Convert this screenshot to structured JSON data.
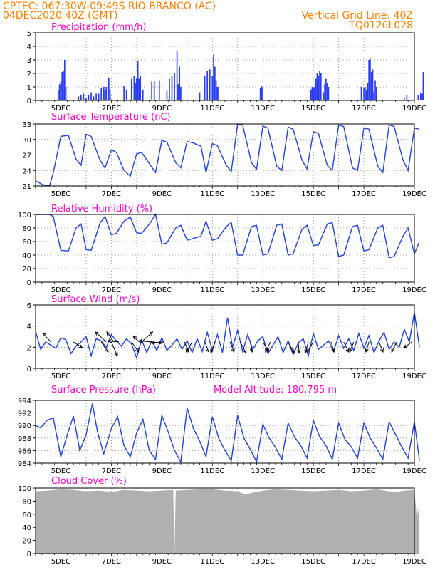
{
  "header": {
    "line1": "CPTEC:   067:30W-09:49S  RIO BRANCO (AC)",
    "line2": "04DEC2020 40Z (GMT)",
    "right1": "Vertical Grid Line: 40Z",
    "right2": "TQ0126L028",
    "model_altitude": "Model Altitude: 180.795 m"
  },
  "colors": {
    "header": "#ff7f00",
    "title": "#ff00c8",
    "line": "#2040e0",
    "bar": "#2a3cf0",
    "cloud": "#b0b0b0",
    "arrow": "#000000"
  },
  "x_axis": {
    "start_day": 4.0,
    "end_day": 19.0,
    "tick_labels": [
      "5DEC",
      "7DEC",
      "9DEC",
      "11DEC",
      "13DEC",
      "15DEC",
      "17DEC",
      "19DEC"
    ]
  },
  "chart_data": [
    {
      "type": "bar",
      "title": "Precipitation (mm/h)",
      "ylim": [
        0,
        5
      ],
      "yticks": [
        "0",
        "1",
        "2",
        "3",
        "4",
        "5"
      ],
      "x": [
        4.9,
        4.95,
        5.0,
        5.05,
        5.1,
        5.15,
        5.2,
        5.7,
        5.8,
        5.9,
        6.0,
        6.1,
        6.2,
        6.3,
        6.4,
        6.5,
        6.6,
        6.7,
        6.75,
        6.8,
        6.9,
        6.95,
        7.5,
        7.6,
        7.8,
        7.9,
        7.95,
        8.0,
        8.05,
        8.1,
        8.15,
        8.25,
        8.6,
        8.7,
        8.9,
        9.2,
        9.3,
        9.4,
        9.5,
        9.6,
        9.65,
        9.7,
        9.75,
        10.5,
        10.7,
        10.8,
        10.9,
        11.0,
        11.05,
        11.1,
        11.15,
        11.2,
        11.25,
        12.9,
        12.95,
        13.0,
        14.9,
        14.95,
        15.0,
        15.05,
        15.1,
        15.15,
        15.2,
        15.25,
        15.3,
        15.4,
        15.45,
        15.5,
        15.55,
        15.6,
        16.9,
        17.0,
        17.05,
        17.1,
        17.15,
        17.2,
        17.25,
        17.3,
        17.35,
        17.4,
        17.45,
        17.5,
        18.6,
        18.7,
        19.15,
        19.25,
        19.3,
        19.35
      ],
      "values": [
        0.8,
        1.2,
        1.4,
        2.1,
        2.2,
        3.0,
        1.0,
        0.3,
        0.4,
        0.5,
        0.2,
        0.4,
        0.6,
        0.3,
        0.5,
        0.5,
        0.9,
        1.0,
        0.8,
        1.0,
        1.7,
        0.8,
        1.1,
        0.8,
        1.6,
        1.8,
        1.3,
        1.6,
        2.9,
        1.6,
        1.8,
        0.8,
        1.4,
        1.4,
        1.5,
        0.7,
        1.6,
        1.8,
        2.0,
        3.7,
        1.2,
        2.5,
        1.0,
        0.6,
        1.8,
        2.2,
        2.3,
        1.8,
        3.4,
        2.5,
        1.5,
        1.0,
        1.0,
        0.9,
        1.1,
        0.9,
        0.8,
        1.0,
        0.9,
        1.0,
        1.6,
        2.0,
        1.8,
        2.2,
        2.0,
        0.6,
        1.2,
        1.6,
        1.3,
        1.0,
        1.0,
        0.9,
        1.0,
        0.8,
        1.3,
        3.0,
        3.1,
        2.1,
        2.3,
        0.6,
        1.5,
        1.0,
        0.2,
        0.4,
        0.4,
        0.6,
        0.5,
        2.1
      ]
    },
    {
      "type": "line",
      "title": "Surface Temperature (nC)",
      "ylim": [
        21,
        33
      ],
      "yticks": [
        "21",
        "24",
        "27",
        "30",
        "33"
      ],
      "x": [
        4.0,
        4.3,
        4.55,
        4.7,
        5.0,
        5.3,
        5.6,
        5.8,
        6.0,
        6.2,
        6.55,
        6.75,
        7.0,
        7.2,
        7.5,
        7.75,
        8.0,
        8.2,
        8.55,
        8.75,
        9.0,
        9.2,
        9.55,
        9.75,
        10.0,
        10.2,
        10.55,
        10.75,
        11.0,
        11.2,
        11.55,
        11.75,
        12.0,
        12.2,
        12.55,
        12.75,
        13.0,
        13.2,
        13.55,
        13.75,
        14.0,
        14.2,
        14.55,
        14.75,
        15.0,
        15.2,
        15.55,
        15.75,
        16.0,
        16.2,
        16.55,
        16.75,
        17.0,
        17.2,
        17.55,
        17.75,
        18.0,
        18.2,
        18.55,
        18.75,
        19.0,
        19.2
      ],
      "values": [
        22.0,
        21.2,
        21.0,
        23.5,
        30.6,
        30.8,
        26.2,
        25.0,
        31.0,
        30.6,
        26.0,
        24.5,
        28.0,
        27.5,
        24.0,
        22.9,
        27.2,
        27.5,
        25.0,
        23.6,
        29.8,
        29.5,
        25.5,
        24.5,
        29.6,
        29.4,
        28.7,
        23.6,
        29.2,
        28.8,
        25.0,
        23.8,
        33.0,
        32.8,
        25.5,
        24.2,
        32.6,
        32.2,
        24.8,
        24.0,
        32.4,
        32.0,
        26.0,
        24.3,
        31.5,
        31.2,
        25.0,
        24.0,
        32.8,
        32.5,
        24.5,
        24.0,
        32.2,
        32.0,
        24.8,
        23.6,
        32.8,
        32.5,
        26.0,
        24.0,
        32.2,
        32.0
      ]
    },
    {
      "type": "line",
      "title": "Relative Humidity (%)",
      "ylim": [
        0,
        100
      ],
      "yticks": [
        "0",
        "20",
        "40",
        "60",
        "80",
        "100"
      ],
      "x": [
        4.0,
        4.3,
        4.55,
        4.7,
        5.0,
        5.3,
        5.6,
        5.8,
        6.0,
        6.2,
        6.55,
        6.75,
        7.0,
        7.2,
        7.5,
        7.75,
        8.0,
        8.2,
        8.55,
        8.75,
        9.0,
        9.2,
        9.55,
        9.75,
        10.0,
        10.2,
        10.55,
        10.75,
        11.0,
        11.2,
        11.55,
        11.75,
        12.0,
        12.2,
        12.55,
        12.75,
        13.0,
        13.2,
        13.55,
        13.75,
        14.0,
        14.2,
        14.55,
        14.75,
        15.0,
        15.2,
        15.55,
        15.75,
        16.0,
        16.2,
        16.55,
        16.75,
        17.0,
        17.2,
        17.55,
        17.75,
        18.0,
        18.2,
        18.55,
        18.75,
        19.0,
        19.2
      ],
      "values": [
        100,
        100,
        100,
        97,
        47,
        46,
        80,
        86,
        48,
        47,
        87,
        97,
        70,
        72,
        90,
        96,
        73,
        72,
        88,
        100,
        56,
        58,
        80,
        84,
        62,
        64,
        68,
        90,
        62,
        64,
        82,
        88,
        40,
        40,
        82,
        84,
        40,
        42,
        84,
        86,
        40,
        42,
        78,
        84,
        54,
        55,
        86,
        88,
        38,
        40,
        82,
        84,
        46,
        48,
        80,
        84,
        36,
        38,
        68,
        80,
        42,
        60
      ]
    },
    {
      "type": "line",
      "title": "Surface Wind (m/s)",
      "ylim": [
        0,
        6
      ],
      "yticks": [
        "0",
        "2",
        "4",
        "6"
      ],
      "x": [
        4.0,
        4.2,
        4.4,
        4.6,
        4.8,
        5.0,
        5.2,
        5.4,
        5.6,
        5.8,
        6.0,
        6.2,
        6.4,
        6.6,
        6.8,
        7.0,
        7.2,
        7.4,
        7.6,
        7.8,
        8.0,
        8.2,
        8.4,
        8.6,
        8.8,
        9.0,
        9.2,
        9.4,
        9.6,
        9.8,
        10.0,
        10.2,
        10.4,
        10.6,
        10.8,
        11.0,
        11.2,
        11.4,
        11.6,
        11.8,
        12.0,
        12.2,
        12.4,
        12.6,
        12.8,
        13.0,
        13.2,
        13.4,
        13.6,
        13.8,
        14.0,
        14.2,
        14.4,
        14.6,
        14.8,
        15.0,
        15.2,
        15.4,
        15.6,
        15.8,
        16.0,
        16.2,
        16.4,
        16.6,
        16.8,
        17.0,
        17.2,
        17.4,
        17.6,
        17.8,
        18.0,
        18.2,
        18.4,
        18.6,
        18.8,
        19.0,
        19.2
      ],
      "values": [
        3.5,
        1.8,
        2.5,
        2.2,
        1.9,
        2.9,
        2.7,
        1.4,
        2.1,
        2.5,
        3.0,
        1.2,
        2.8,
        2.6,
        2.0,
        3.2,
        2.6,
        2.1,
        2.8,
        2.3,
        1.0,
        2.7,
        1.5,
        2.6,
        1.7,
        2.9,
        1.7,
        2.2,
        2.8,
        1.8,
        2.6,
        1.5,
        2.8,
        1.6,
        3.4,
        1.7,
        3.2,
        1.5,
        4.8,
        2.0,
        3.6,
        1.6,
        3.2,
        1.8,
        2.6,
        3.0,
        1.4,
        2.2,
        3.0,
        1.5,
        2.6,
        1.3,
        2.4,
        2.8,
        1.2,
        3.3,
        1.8,
        2.2,
        2.6,
        1.6,
        3.1,
        1.9,
        2.8,
        1.7,
        3.3,
        1.9,
        3.1,
        1.5,
        2.6,
        3.4,
        1.8,
        2.5,
        2.0,
        3.7,
        2.5,
        5.3,
        2.0
      ],
      "arrows": [
        {
          "x": 4.6,
          "u": -0.8,
          "v": 0.9
        },
        {
          "x": 5.5,
          "u": 0.9,
          "v": -0.6
        },
        {
          "x": 6.6,
          "u": 0.7,
          "v": -1.0
        },
        {
          "x": 6.8,
          "u": -1.1,
          "v": 1.0
        },
        {
          "x": 7.0,
          "u": 0.6,
          "v": -1.4
        },
        {
          "x": 7.1,
          "u": -0.7,
          "v": 1.0
        },
        {
          "x": 7.3,
          "u": -1.1,
          "v": 0.1
        },
        {
          "x": 7.8,
          "u": 0.7,
          "v": -1.0
        },
        {
          "x": 8.1,
          "u": -0.6,
          "v": 0.6
        },
        {
          "x": 8.2,
          "u": 1.1,
          "v": 1.0
        },
        {
          "x": 8.5,
          "u": 1.3,
          "v": -0.1
        },
        {
          "x": 8.6,
          "u": -1.3,
          "v": 0.1
        },
        {
          "x": 9.1,
          "u": -1.3,
          "v": -0.1
        },
        {
          "x": 9.9,
          "u": 0.4,
          "v": -1.0
        },
        {
          "x": 10.2,
          "u": -0.6,
          "v": -1.0
        },
        {
          "x": 10.7,
          "u": 0.4,
          "v": -1.0
        },
        {
          "x": 11.1,
          "u": -0.4,
          "v": -1.1
        },
        {
          "x": 11.7,
          "u": 0.4,
          "v": -1.0
        },
        {
          "x": 12.1,
          "u": 0.6,
          "v": -1.1
        },
        {
          "x": 12.5,
          "u": 0.2,
          "v": -1.0
        },
        {
          "x": 13.0,
          "u": 0.6,
          "v": -1.0
        },
        {
          "x": 13.3,
          "u": -0.5,
          "v": -1.0
        },
        {
          "x": 14.0,
          "u": 0.6,
          "v": -1.1
        },
        {
          "x": 14.4,
          "u": 0.1,
          "v": -1.1
        },
        {
          "x": 14.8,
          "u": -0.3,
          "v": -1.1
        },
        {
          "x": 15.0,
          "u": -0.6,
          "v": -1.0
        },
        {
          "x": 15.7,
          "u": 0.3,
          "v": -1.0
        },
        {
          "x": 16.2,
          "u": 0.5,
          "v": -1.0
        },
        {
          "x": 16.6,
          "u": -0.4,
          "v": -1.0
        },
        {
          "x": 17.2,
          "u": -0.3,
          "v": -1.0
        },
        {
          "x": 17.6,
          "u": 0.4,
          "v": -1.0
        },
        {
          "x": 18.3,
          "u": -0.5,
          "v": -1.0
        },
        {
          "x": 18.9,
          "u": -0.8,
          "v": -0.6
        }
      ]
    },
    {
      "type": "line",
      "title": "Surface Pressure (hPa)",
      "ylim": [
        984,
        994
      ],
      "yticks": [
        "984",
        "986",
        "988",
        "990",
        "992",
        "994"
      ],
      "x": [
        4.0,
        4.2,
        4.45,
        4.7,
        5.0,
        5.25,
        5.5,
        5.75,
        6.0,
        6.25,
        6.45,
        6.7,
        7.0,
        7.25,
        7.5,
        7.75,
        8.0,
        8.25,
        8.5,
        8.75,
        9.0,
        9.25,
        9.5,
        9.75,
        10.0,
        10.25,
        10.5,
        10.75,
        11.0,
        11.25,
        11.5,
        11.75,
        12.0,
        12.25,
        12.5,
        12.75,
        13.0,
        13.25,
        13.5,
        13.75,
        14.0,
        14.25,
        14.5,
        14.75,
        15.0,
        15.25,
        15.5,
        15.75,
        16.0,
        16.25,
        16.5,
        16.75,
        17.0,
        17.25,
        17.5,
        17.75,
        18.0,
        18.25,
        18.5,
        18.75,
        19.0,
        19.2
      ],
      "values": [
        990.0,
        989.6,
        990.8,
        991.2,
        985.0,
        988.5,
        991.5,
        986.0,
        988.5,
        993.5,
        989.0,
        985.5,
        989.5,
        991.4,
        986.8,
        985.0,
        988.8,
        991.0,
        986.0,
        984.6,
        991.6,
        989.0,
        986.0,
        984.2,
        992.8,
        989.5,
        987.5,
        985.0,
        991.4,
        988.0,
        986.0,
        984.4,
        991.6,
        988.0,
        986.2,
        984.2,
        990.2,
        988.0,
        986.5,
        984.6,
        990.4,
        988.2,
        986.8,
        984.8,
        990.8,
        988.2,
        986.8,
        984.6,
        990.4,
        987.8,
        986.6,
        984.8,
        990.4,
        988.0,
        986.4,
        984.6,
        990.6,
        988.6,
        986.6,
        984.8,
        990.6,
        984.4
      ]
    },
    {
      "type": "area",
      "title": "Cloud Cover (%)",
      "ylim": [
        0,
        100
      ],
      "yticks": [
        "0",
        "20",
        "40",
        "60",
        "80",
        "100"
      ],
      "x": [
        4.0,
        4.5,
        5.0,
        5.5,
        6.0,
        6.5,
        7.0,
        7.5,
        8.0,
        8.5,
        9.0,
        9.45,
        9.5,
        9.55,
        10.0,
        10.5,
        11.0,
        11.5,
        12.0,
        12.3,
        12.6,
        13.0,
        13.5,
        14.0,
        14.5,
        15.0,
        15.5,
        16.0,
        16.5,
        17.0,
        17.5,
        18.0,
        18.3,
        18.6,
        19.0,
        19.1,
        19.2
      ],
      "values": [
        95,
        96,
        98,
        97,
        95,
        96,
        94,
        97,
        96,
        95,
        96,
        97,
        0,
        96,
        97,
        98,
        98,
        96,
        95,
        90,
        93,
        96,
        98,
        97,
        96,
        95,
        96,
        97,
        95,
        96,
        98,
        95,
        94,
        96,
        97,
        55,
        75
      ]
    }
  ]
}
